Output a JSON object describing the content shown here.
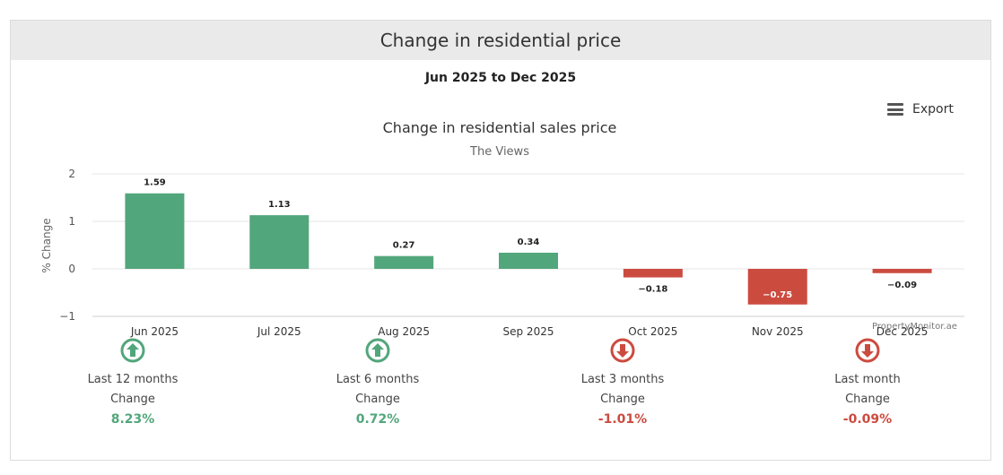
{
  "page": {
    "header_title": "Change in residential price",
    "date_range": "Jun 2025 to Dec 2025",
    "export_label": "Export",
    "credit": "PropertyMonitor.ae"
  },
  "colors": {
    "positive": "#52a67b",
    "negative": "#cc4b3f",
    "grid": "#e6e6e6"
  },
  "chart_data": {
    "type": "bar",
    "title": "Change in residential sales price",
    "subtitle": "The Views",
    "xlabel": "",
    "ylabel": "% Change",
    "ylim": [
      -1,
      2
    ],
    "yticks": [
      2,
      1,
      0,
      -1
    ],
    "ytick_labels": [
      "2",
      "1",
      "0",
      "−1"
    ],
    "categories": [
      "Jun 2025",
      "Jul 2025",
      "Aug 2025",
      "Sep 2025",
      "Oct 2025",
      "Nov 2025",
      "Dec 2025"
    ],
    "values": [
      1.59,
      1.13,
      0.27,
      0.34,
      -0.18,
      -0.75,
      -0.09
    ],
    "data_labels": [
      "1.59",
      "1.13",
      "0.27",
      "0.34",
      "−0.18",
      "−0.75",
      "−0.09"
    ],
    "grid": true
  },
  "stats": [
    {
      "period": "Last 12 months",
      "caption": "Change",
      "value": "8.23%",
      "direction": "up",
      "icon": "arrow-up-circle-icon"
    },
    {
      "period": "Last 6 months",
      "caption": "Change",
      "value": "0.72%",
      "direction": "up",
      "icon": "arrow-up-circle-icon"
    },
    {
      "period": "Last 3 months",
      "caption": "Change",
      "value": "-1.01%",
      "direction": "down",
      "icon": "arrow-down-circle-icon"
    },
    {
      "period": "Last month",
      "caption": "Change",
      "value": "-0.09%",
      "direction": "down",
      "icon": "arrow-down-circle-icon"
    }
  ]
}
